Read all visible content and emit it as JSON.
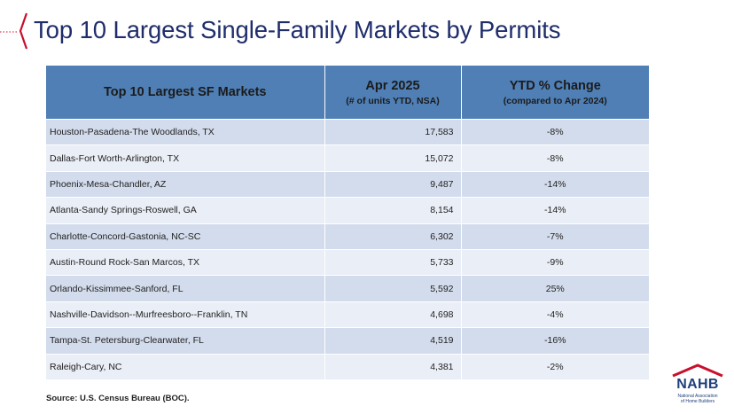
{
  "slide": {
    "title": "Top 10 Largest Single-Family Markets by Permits",
    "source": "Source: U.S. Census Bureau (BOC)."
  },
  "table": {
    "headers": {
      "market": "Top 10 Largest SF Markets",
      "permits_main": "Apr 2025",
      "permits_sub": "(# of units YTD, NSA)",
      "change_main": "YTD % Change",
      "change_sub": "(compared to Apr 2024)"
    },
    "rows": [
      {
        "market": "Houston-Pasadena-The Woodlands, TX",
        "permits": "17,583",
        "change": "-8%"
      },
      {
        "market": "Dallas-Fort Worth-Arlington, TX",
        "permits": "15,072",
        "change": "-8%"
      },
      {
        "market": "Phoenix-Mesa-Chandler, AZ",
        "permits": "9,487",
        "change": "-14%"
      },
      {
        "market": "Atlanta-Sandy Springs-Roswell, GA",
        "permits": "8,154",
        "change": "-14%"
      },
      {
        "market": "Charlotte-Concord-Gastonia, NC-SC",
        "permits": "6,302",
        "change": "-7%"
      },
      {
        "market": "Austin-Round Rock-San Marcos, TX",
        "permits": "5,733",
        "change": "-9%"
      },
      {
        "market": "Orlando-Kissimmee-Sanford, FL",
        "permits": "5,592",
        "change": "25%"
      },
      {
        "market": "Nashville-Davidson--Murfreesboro--Franklin, TN",
        "permits": "4,698",
        "change": "-4%"
      },
      {
        "market": "Tampa-St. Petersburg-Clearwater, FL",
        "permits": "4,519",
        "change": "-16%"
      },
      {
        "market": "Raleigh-Cary, NC",
        "permits": "4,381",
        "change": "-2%"
      }
    ]
  },
  "logo": {
    "name": "NAHB",
    "subtitle_line1": "National Association",
    "subtitle_line2": "of Home Builders"
  },
  "colors": {
    "title": "#1f2d6b",
    "header_bg": "#4f7fb5",
    "row_dark": "#d3dcec",
    "row_light": "#eaeef6",
    "accent_red": "#c8102e",
    "logo_blue": "#1f3f7a"
  }
}
